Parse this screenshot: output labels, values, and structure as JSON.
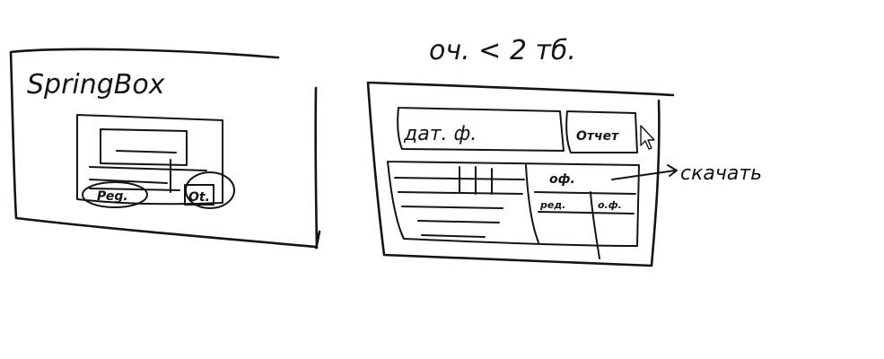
{
  "sketch": {
    "left_frame": {
      "title": "SpringBox",
      "left_label": "Peg.",
      "right_label": "Ot."
    },
    "right_frame": {
      "heading": "оч. < 2 тб.",
      "search_field_label": "дат. ф.",
      "search_button_label": "Отчет",
      "table_header_label": "оф.",
      "table_sub_label_1": "ред.",
      "table_sub_label_2": "о.ф.",
      "annotation": "скачать"
    },
    "ink_color": "#141414"
  }
}
